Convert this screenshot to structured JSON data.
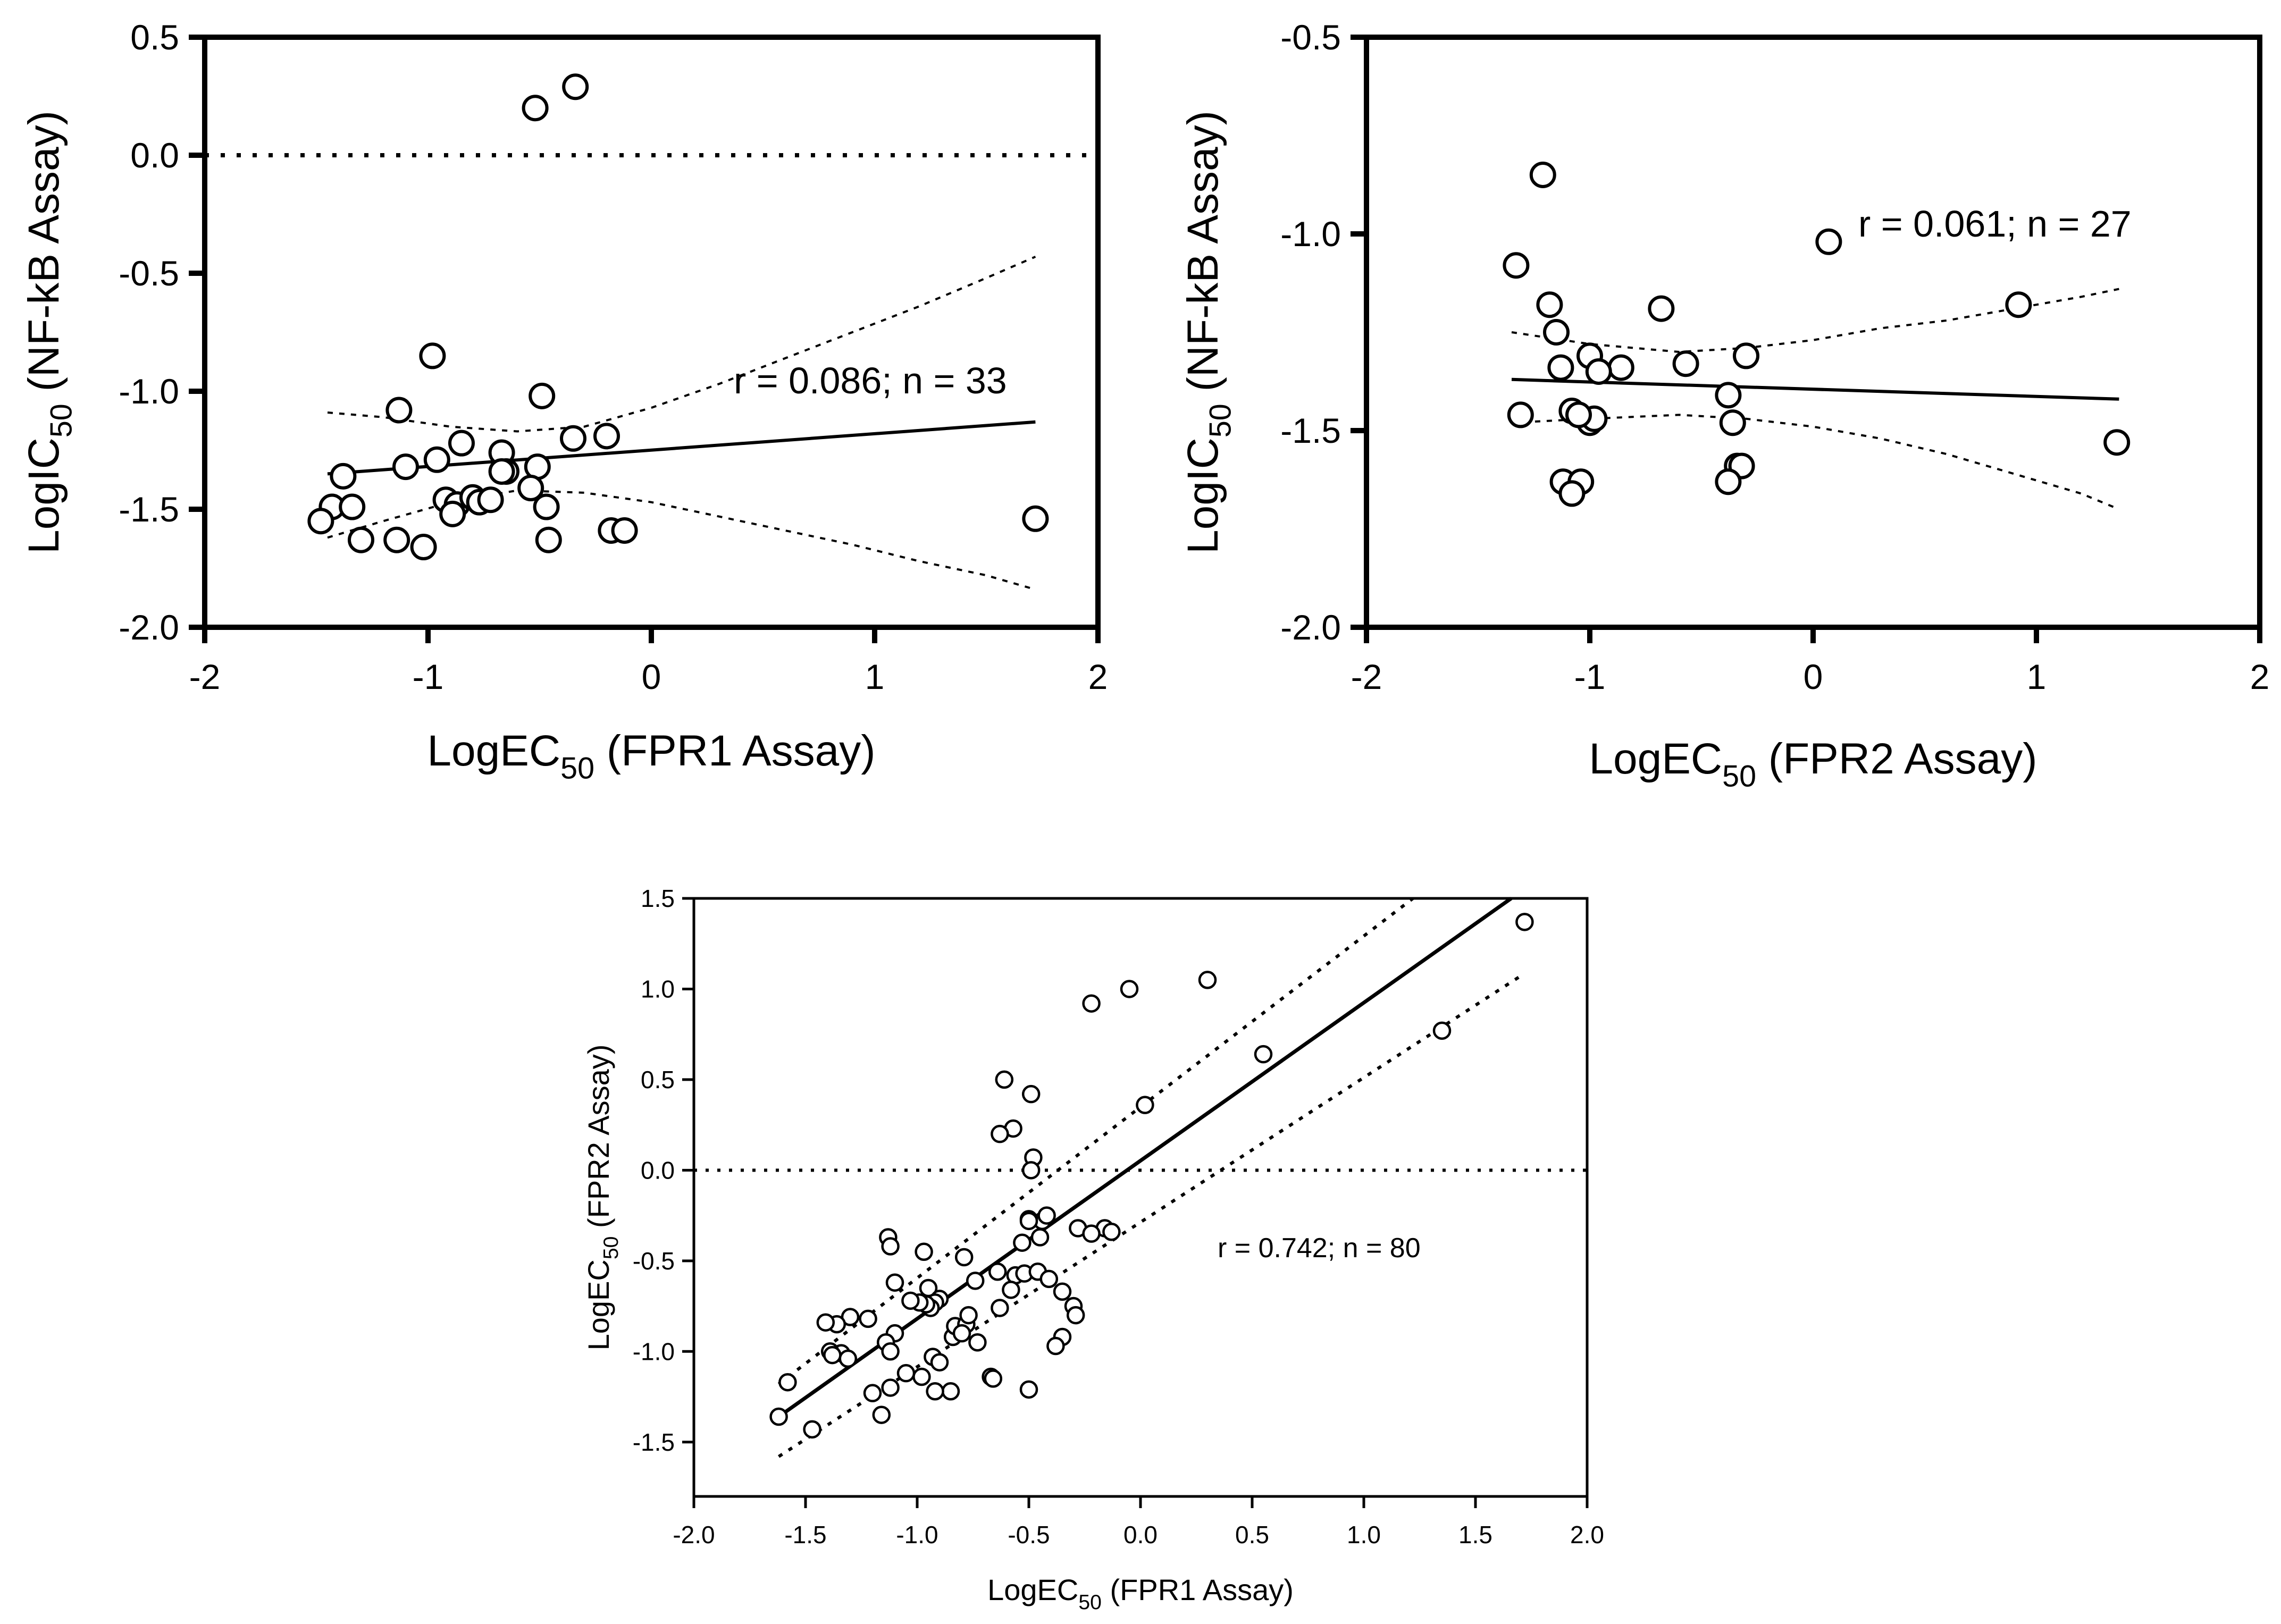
{
  "chart_data": [
    {
      "id": "chartA",
      "type": "scatter",
      "xlabel_main": "LogEC",
      "xlabel_sub": "50",
      "xlabel_tail": " (FPR1 Assay)",
      "ylabel_main": "LogIC",
      "ylabel_sub": "50",
      "ylabel_tail": " (NF-kB Assay)",
      "xlim": [
        -2,
        2
      ],
      "ylim": [
        -2.0,
        0.5
      ],
      "xticks": [
        -2,
        -1,
        0,
        1,
        2
      ],
      "xtick_labels": [
        "-2",
        "-1",
        "0",
        "1",
        "2"
      ],
      "yticks": [
        0.5,
        0.0,
        -0.5,
        -1.0,
        -1.5,
        -2.0
      ],
      "ytick_labels": [
        "0.5",
        "0.0",
        "-0.5",
        "-1.0",
        "-1.5",
        "-2.0"
      ],
      "annotation": "r = 0.086; n = 33",
      "zero_line": 0.0,
      "fit": {
        "x": [
          -1.45,
          1.72
        ],
        "y": [
          -1.35,
          -1.13
        ]
      },
      "ci_upper": {
        "x": [
          -1.45,
          -1.2,
          -0.9,
          -0.6,
          -0.3,
          0.0,
          0.3,
          0.6,
          0.9,
          1.2,
          1.5,
          1.72
        ],
        "y": [
          -1.09,
          -1.11,
          -1.15,
          -1.17,
          -1.15,
          -1.07,
          -0.97,
          -0.86,
          -0.75,
          -0.64,
          -0.52,
          -0.43
        ]
      },
      "ci_lower": {
        "x": [
          -1.45,
          -1.2,
          -0.9,
          -0.6,
          -0.3,
          0.0,
          0.3,
          0.6,
          0.9,
          1.2,
          1.5,
          1.72
        ],
        "y": [
          -1.62,
          -1.55,
          -1.47,
          -1.42,
          -1.43,
          -1.47,
          -1.53,
          -1.59,
          -1.65,
          -1.72,
          -1.78,
          -1.84
        ]
      },
      "points": {
        "x": [
          -0.52,
          -0.34,
          -0.98,
          -1.13,
          -0.49,
          -1.38,
          -1.1,
          -0.96,
          -0.85,
          -0.67,
          -0.51,
          -0.35,
          -0.2,
          -1.43,
          -1.34,
          -0.65,
          -0.67,
          -0.54,
          -0.47,
          -0.92,
          -0.87,
          -0.8,
          -0.77,
          -0.72,
          -0.89,
          -1.3,
          -1.14,
          -1.02,
          -0.46,
          -0.18,
          -0.12,
          -1.48,
          1.72
        ],
        "y": [
          0.2,
          0.29,
          -0.85,
          -1.08,
          -1.02,
          -1.36,
          -1.32,
          -1.29,
          -1.22,
          -1.26,
          -1.32,
          -1.2,
          -1.19,
          -1.49,
          -1.49,
          -1.34,
          -1.34,
          -1.41,
          -1.49,
          -1.46,
          -1.48,
          -1.45,
          -1.47,
          -1.46,
          -1.52,
          -1.63,
          -1.63,
          -1.66,
          -1.63,
          -1.59,
          -1.59,
          -1.55,
          -1.54
        ]
      }
    },
    {
      "id": "chartB",
      "type": "scatter",
      "xlabel_main": "LogEC",
      "xlabel_sub": "50",
      "xlabel_tail": " (FPR2 Assay)",
      "ylabel_main": "LogIC",
      "ylabel_sub": "50",
      "ylabel_tail": " (NF-kB Assay)",
      "xlim": [
        -2,
        2
      ],
      "ylim": [
        -2.0,
        -0.5
      ],
      "xticks": [
        -2,
        -1,
        0,
        1,
        2
      ],
      "xtick_labels": [
        "-2",
        "-1",
        "0",
        "1",
        "2"
      ],
      "yticks": [
        -0.5,
        -1.0,
        -1.5,
        -2.0
      ],
      "ytick_labels": [
        "-0.5",
        "-1.0",
        "-1.5",
        "-2.0"
      ],
      "annotation": "r = 0.061; n = 27",
      "fit": {
        "x": [
          -1.35,
          1.37
        ],
        "y": [
          -1.37,
          -1.42
        ]
      },
      "ci_upper": {
        "x": [
          -1.35,
          -1.0,
          -0.6,
          -0.3,
          0.0,
          0.3,
          0.6,
          0.9,
          1.2,
          1.37
        ],
        "y": [
          -1.25,
          -1.28,
          -1.3,
          -1.29,
          -1.27,
          -1.24,
          -1.22,
          -1.19,
          -1.16,
          -1.14
        ]
      },
      "ci_lower": {
        "x": [
          -1.35,
          -1.0,
          -0.6,
          -0.3,
          0.0,
          0.3,
          0.6,
          0.9,
          1.2,
          1.37
        ],
        "y": [
          -1.48,
          -1.47,
          -1.46,
          -1.47,
          -1.49,
          -1.52,
          -1.56,
          -1.61,
          -1.66,
          -1.7
        ]
      },
      "points": {
        "x": [
          -1.21,
          -1.33,
          -1.18,
          -1.15,
          -1.13,
          -1.0,
          -0.86,
          -0.96,
          -1.0,
          -0.68,
          -0.57,
          -0.3,
          0.07,
          0.92,
          -1.31,
          -1.08,
          -0.98,
          -1.12,
          -1.04,
          -0.38,
          -0.36,
          -0.34,
          -0.32,
          -0.38,
          -1.08,
          -1.05,
          1.36
        ],
        "y": [
          -0.85,
          -1.08,
          -1.18,
          -1.25,
          -1.34,
          -1.31,
          -1.34,
          -1.35,
          -1.48,
          -1.19,
          -1.33,
          -1.31,
          -1.02,
          -1.18,
          -1.46,
          -1.45,
          -1.47,
          -1.63,
          -1.63,
          -1.41,
          -1.48,
          -1.59,
          -1.59,
          -1.63,
          -1.66,
          -1.46,
          -1.53
        ]
      }
    },
    {
      "id": "chartC",
      "type": "scatter",
      "xlabel_main": "LogEC",
      "xlabel_sub": "50",
      "xlabel_tail": " (FPR1 Assay)",
      "ylabel_main": "LogEC",
      "ylabel_sub": "50",
      "ylabel_tail": " (FPR2 Assay)",
      "xlim": [
        -2.0,
        2.0
      ],
      "ylim": [
        -1.8,
        1.5
      ],
      "xticks": [
        -2.0,
        -1.5,
        -1.0,
        -0.5,
        0.0,
        0.5,
        1.0,
        1.5,
        2.0
      ],
      "xtick_labels": [
        "-2.0",
        "-1.5",
        "-1.0",
        "-0.5",
        "0.0",
        "0.5",
        "1.0",
        "1.5",
        "2.0"
      ],
      "yticks": [
        1.5,
        1.0,
        0.5,
        0.0,
        -0.5,
        -1.0,
        -1.5
      ],
      "ytick_labels": [
        "1.5",
        "1.0",
        "0.5",
        "0.0",
        "-0.5",
        "-1.0",
        "-1.5"
      ],
      "annotation": "r = 0.742; n = 80",
      "zero_line": 0.0,
      "fit": {
        "x": [
          -1.62,
          1.66
        ],
        "y": [
          -1.36,
          1.5
        ]
      },
      "ci_upper": {
        "x": [
          -1.62,
          1.22
        ],
        "y": [
          -1.18,
          1.5
        ]
      },
      "ci_lower": {
        "x": [
          -1.62,
          1.7
        ],
        "y": [
          -1.58,
          1.07
        ]
      },
      "points": {
        "x": [
          1.72,
          1.35,
          0.55,
          0.3,
          -0.05,
          -0.22,
          -0.61,
          -0.49,
          -0.57,
          -0.63,
          0.02,
          -0.48,
          -0.49,
          -0.28,
          -0.16,
          -0.13,
          -0.22,
          -0.44,
          -0.5,
          -0.42,
          -0.45,
          -0.53,
          -0.5,
          -1.13,
          -1.12,
          -0.97,
          -0.79,
          -1.1,
          -0.95,
          -0.64,
          -0.56,
          -0.52,
          -0.46,
          -0.41,
          -0.35,
          -0.3,
          -0.29,
          -0.35,
          -0.38,
          -0.58,
          -0.63,
          -0.74,
          -0.9,
          -0.92,
          -0.94,
          -0.96,
          -0.99,
          -1.03,
          -1.1,
          -1.14,
          -1.22,
          -1.3,
          -1.36,
          -1.34,
          -1.39,
          -1.41,
          -1.38,
          -1.31,
          -1.2,
          -1.12,
          -1.16,
          -1.12,
          -0.93,
          -0.84,
          -0.83,
          -0.78,
          -0.77,
          -0.73,
          -0.8,
          -0.9,
          -0.85,
          -0.98,
          -1.05,
          -0.92,
          -0.67,
          -0.66,
          -0.5,
          -1.47,
          -1.62,
          -1.58
        ],
        "y": [
          1.37,
          0.77,
          0.64,
          1.05,
          1.0,
          0.92,
          0.5,
          0.42,
          0.23,
          0.2,
          0.36,
          0.07,
          0.0,
          -0.32,
          -0.32,
          -0.34,
          -0.35,
          -0.28,
          -0.27,
          -0.25,
          -0.37,
          -0.4,
          -0.28,
          -0.37,
          -0.42,
          -0.45,
          -0.48,
          -0.62,
          -0.65,
          -0.56,
          -0.58,
          -0.57,
          -0.56,
          -0.6,
          -0.67,
          -0.75,
          -0.8,
          -0.92,
          -0.97,
          -0.66,
          -0.76,
          -0.61,
          -0.71,
          -0.73,
          -0.76,
          -0.74,
          -0.73,
          -0.72,
          -0.9,
          -0.95,
          -0.82,
          -0.81,
          -0.85,
          -1.01,
          -1.0,
          -0.84,
          -1.02,
          -1.04,
          -1.23,
          -1.2,
          -1.35,
          -1.0,
          -1.03,
          -0.92,
          -0.86,
          -0.85,
          -0.8,
          -0.95,
          -0.9,
          -1.06,
          -1.22,
          -1.14,
          -1.12,
          -1.22,
          -1.14,
          -1.15,
          -1.21,
          -1.43,
          -1.36,
          -1.17
        ]
      }
    }
  ]
}
